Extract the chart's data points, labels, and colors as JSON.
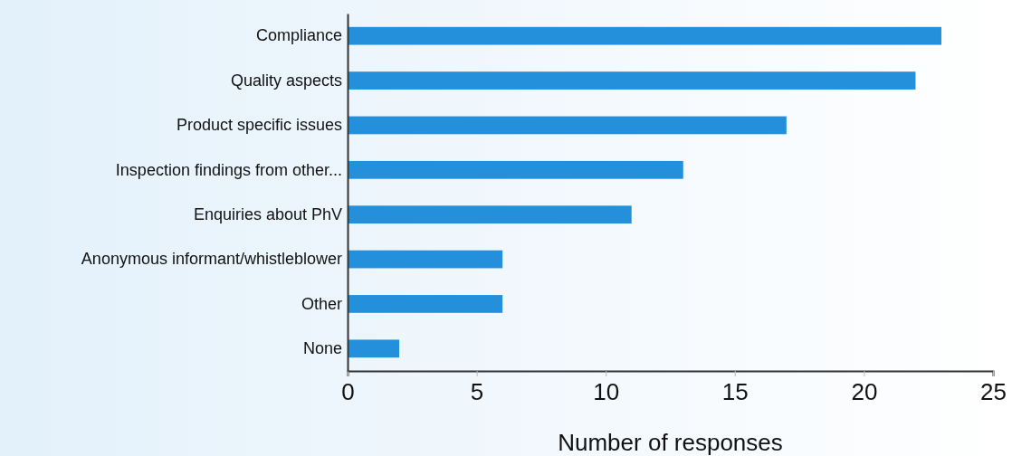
{
  "chart_data": {
    "type": "bar",
    "orientation": "horizontal",
    "xlabel": "Number of responses",
    "categories": [
      "Compliance",
      "Quality aspects",
      "Product specific issues",
      "Inspection findings from other...",
      "Enquiries about PhV",
      "Anonymous informant/whistleblower",
      "Other",
      "None"
    ],
    "values": [
      23,
      22,
      17,
      13,
      11,
      6,
      6,
      2
    ],
    "color": "#2490dc",
    "xlim": [
      0,
      25
    ],
    "xticks": [
      0,
      5,
      10,
      15,
      20,
      25
    ],
    "grid": false
  }
}
